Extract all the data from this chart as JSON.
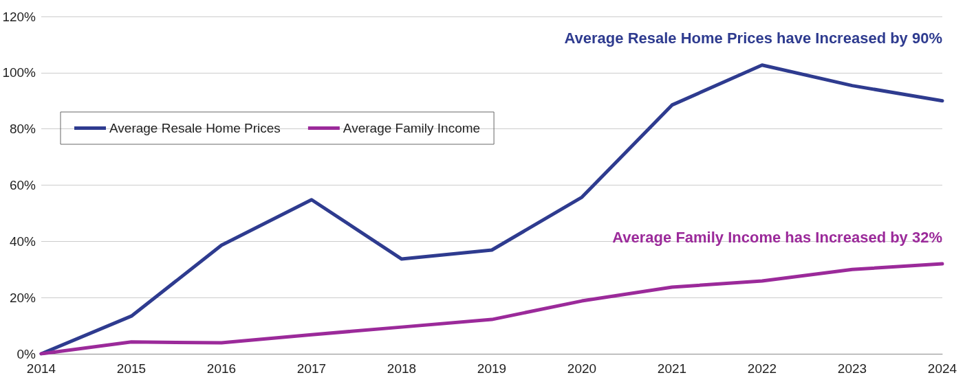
{
  "chart_data": {
    "type": "line",
    "categories": [
      "2014",
      "2015",
      "2016",
      "2017",
      "2018",
      "2019",
      "2020",
      "2021",
      "2022",
      "2023",
      "2024"
    ],
    "series": [
      {
        "name": "Average Resale Home Prices",
        "color": "#2e3b8f",
        "values": [
          0,
          13.4,
          38.6,
          54.8,
          33.7,
          36.9,
          55.7,
          88.5,
          102.7,
          95.4,
          90
        ]
      },
      {
        "name": "Average Family Income",
        "color": "#9b2a9a",
        "values": [
          0,
          4.2,
          3.9,
          6.8,
          9.5,
          12.2,
          18.8,
          23.7,
          25.9,
          30,
          32
        ]
      }
    ],
    "ylim": [
      0,
      120
    ],
    "yticks": [
      {
        "value": 0,
        "label": "0%"
      },
      {
        "value": 20,
        "label": "20%"
      },
      {
        "value": 40,
        "label": "40%"
      },
      {
        "value": 60,
        "label": "60%"
      },
      {
        "value": 80,
        "label": "80%"
      },
      {
        "value": 100,
        "label": "100%"
      },
      {
        "value": 120,
        "label": "120%"
      }
    ],
    "annotations": [
      "Average Resale Home Prices have Increased by 90%",
      "Average Family Income has Increased by 32%"
    ],
    "grid": "y",
    "legend": "left",
    "marker": "none",
    "line_style": "solid"
  }
}
